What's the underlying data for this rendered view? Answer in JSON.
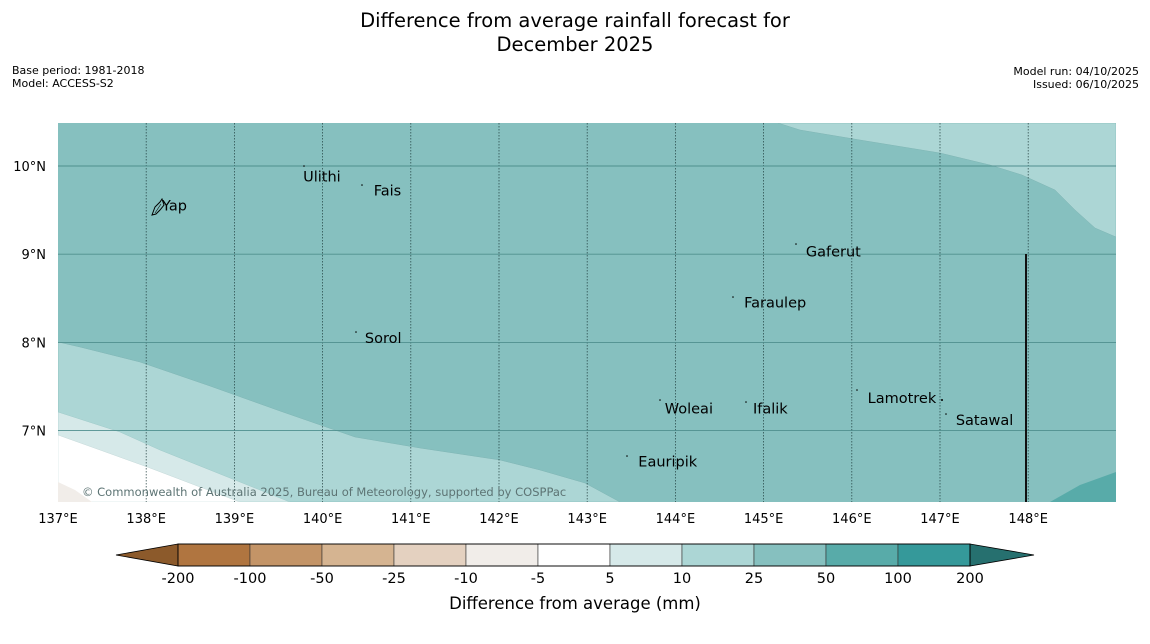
{
  "title": {
    "line1": "Difference from average rainfall forecast for",
    "line2": "December 2025"
  },
  "meta": {
    "base_period": "Base period: 1981-2018",
    "model": "Model: ACCESS-S2",
    "model_run": "Model run: 04/10/2025",
    "issued": "Issued: 06/10/2025"
  },
  "map": {
    "lon_range": [
      137,
      149
    ],
    "lat_range": [
      6.2,
      10.5
    ],
    "lon_ticks": [
      "137°E",
      "138°E",
      "139°E",
      "140°E",
      "141°E",
      "142°E",
      "143°E",
      "144°E",
      "145°E",
      "146°E",
      "147°E",
      "148°E"
    ],
    "lat_ticks": [
      "10°N",
      "9°N",
      "8°N",
      "7°N"
    ],
    "copyright": "© Commonwealth of Australia 2025, Bureau of Meteorology, supported by COSPPac",
    "places": [
      {
        "name": "Yap",
        "lon": 138.1,
        "lat": 9.55
      },
      {
        "name": "Ulithi",
        "lon": 139.7,
        "lat": 9.88
      },
      {
        "name": "Fais",
        "lon": 140.5,
        "lat": 9.72
      },
      {
        "name": "Gaferut",
        "lon": 145.4,
        "lat": 9.03
      },
      {
        "name": "Faraulep",
        "lon": 144.7,
        "lat": 8.45
      },
      {
        "name": "Sorol",
        "lon": 140.4,
        "lat": 8.05
      },
      {
        "name": "Lamotrek",
        "lon": 146.1,
        "lat": 7.37
      },
      {
        "name": "Woleai",
        "lon": 143.8,
        "lat": 7.25
      },
      {
        "name": "Ifalik",
        "lon": 144.8,
        "lat": 7.25
      },
      {
        "name": "Satawal",
        "lon": 147.1,
        "lat": 7.12
      },
      {
        "name": "Eauripik",
        "lon": 143.5,
        "lat": 6.65
      }
    ]
  },
  "legend": {
    "title": "Difference from average (mm)",
    "labels": [
      "-200",
      "-100",
      "-50",
      "-25",
      "-10",
      "-5",
      "5",
      "10",
      "25",
      "50",
      "100",
      "200"
    ],
    "colors": [
      "#8c5a2b",
      "#b07540",
      "#c39467",
      "#d5b491",
      "#e4d1c0",
      "#f1ede9",
      "#ffffff",
      "#d6e9e9",
      "#acd6d5",
      "#86c0bf",
      "#58aba9",
      "#35999a",
      "#26706f"
    ]
  }
}
